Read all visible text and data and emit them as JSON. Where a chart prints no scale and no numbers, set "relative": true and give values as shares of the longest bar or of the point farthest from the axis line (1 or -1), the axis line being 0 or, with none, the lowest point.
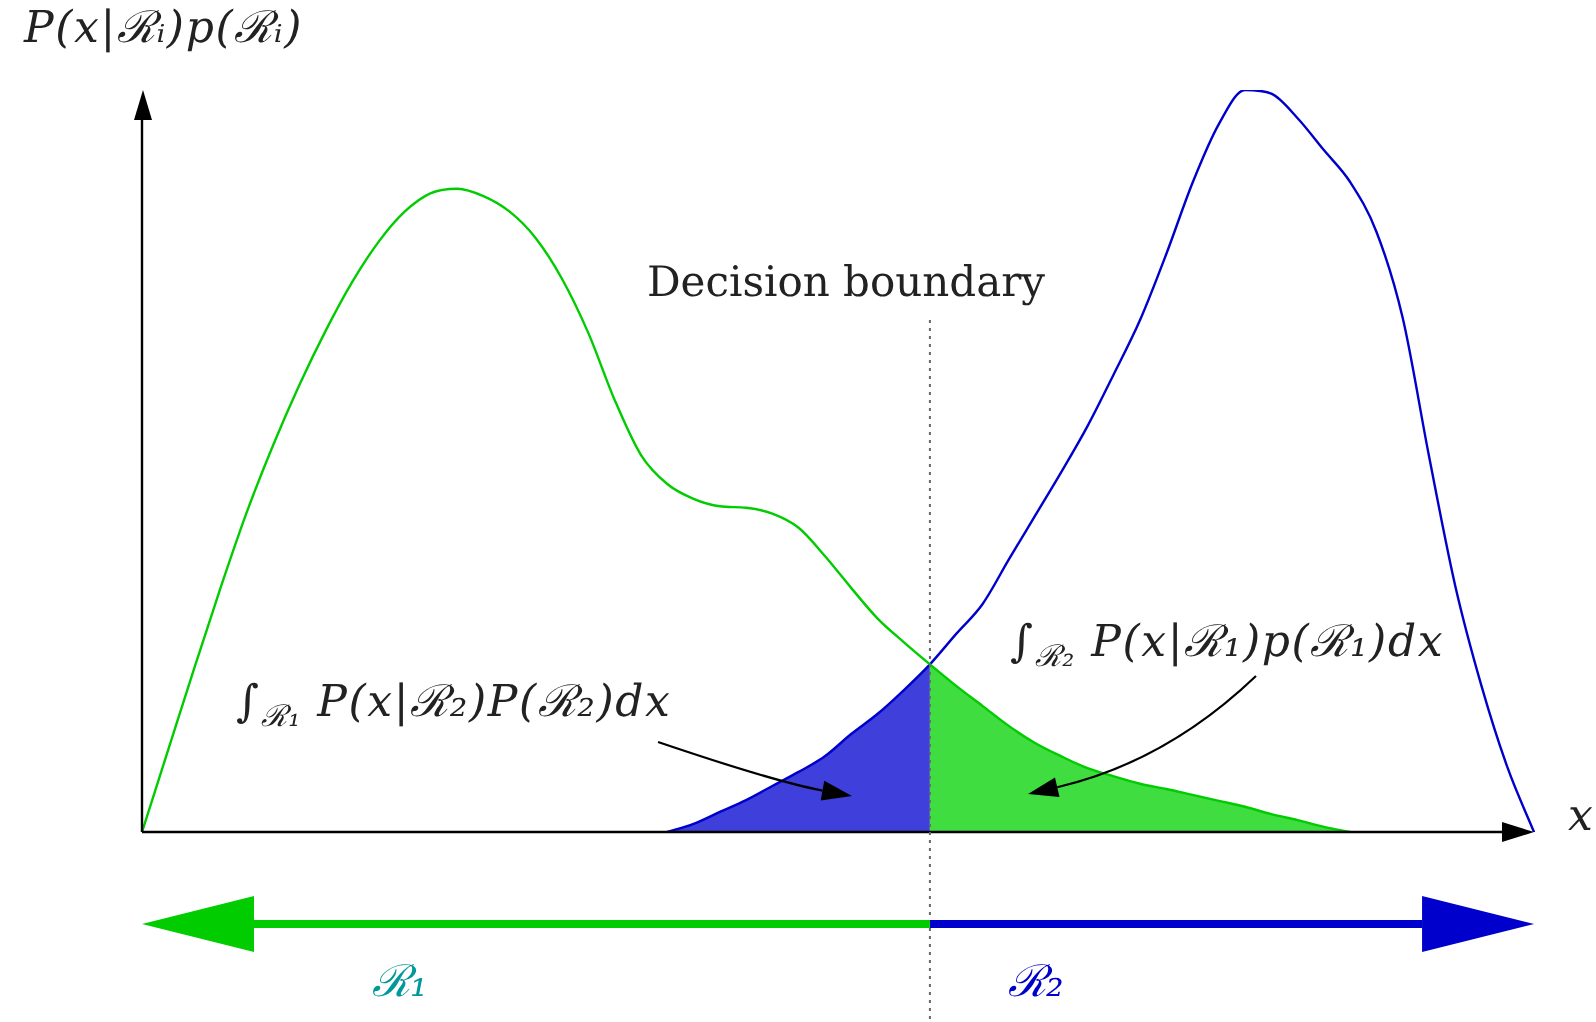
{
  "chart_data": {
    "type": "line",
    "xlabel": "x",
    "ylabel": "P(x|ℛᵢ)p(ℛᵢ)",
    "categories": [
      null,
      null,
      null,
      null,
      null,
      null,
      null,
      null,
      null,
      null,
      null,
      null,
      null,
      null,
      null,
      null,
      null,
      null,
      null,
      null,
      null,
      null,
      null,
      null,
      null,
      null,
      null,
      null,
      null,
      null,
      null,
      null,
      null,
      null,
      null,
      null,
      null,
      null,
      null,
      null,
      null,
      null,
      null,
      null,
      null,
      null,
      null,
      null,
      null,
      null,
      null,
      null,
      null,
      null
    ],
    "relative": true,
    "series": [
      {
        "color": "#00cc00",
        "values": [
          0,
          0.111,
          0.222,
          0.33,
          0.432,
          0.522,
          0.603,
          0.676,
          0.741,
          0.795,
          0.836,
          0.861,
          0.867,
          0.857,
          0.836,
          0.8,
          0.745,
          0.672,
          0.582,
          0.508,
          0.469,
          0.449,
          0.439,
          0.437,
          0.429,
          0.41,
          0.372,
          0.329,
          0.288,
          0.256,
          0.226,
          0.197,
          0.17,
          0.143,
          0.12,
          0.102,
          0.086,
          0.075,
          0.065,
          0.058,
          0.05,
          0.042,
          0.034,
          0.024,
          0.016,
          0.007,
          0,
          null,
          null,
          null,
          null,
          null,
          null,
          null
        ]
      },
      {
        "color": "#0000cc",
        "values": [
          null,
          null,
          null,
          null,
          null,
          null,
          null,
          null,
          null,
          null,
          null,
          null,
          null,
          null,
          null,
          null,
          null,
          null,
          null,
          null,
          0,
          0.011,
          0.027,
          0.043,
          0.062,
          0.081,
          0.102,
          0.132,
          0.159,
          0.191,
          0.226,
          0.267,
          0.307,
          0.367,
          0.426,
          0.485,
          0.547,
          0.617,
          0.69,
          0.779,
          0.875,
          0.954,
          1,
          0.995,
          0.962,
          0.919,
          0.876,
          0.809,
          0.693,
          0.507,
          0.332,
          0.197,
          0.086,
          0
        ]
      },
      {
        "type": "area",
        "color": "#3f3fdc",
        "values": [
          null,
          null,
          null,
          null,
          null,
          null,
          null,
          null,
          null,
          null,
          null,
          null,
          null,
          null,
          null,
          null,
          null,
          null,
          null,
          null,
          0,
          0.011,
          0.027,
          0.043,
          0.062,
          0.081,
          0.102,
          0.132,
          0.159,
          0.191,
          0.226,
          null,
          null,
          null,
          null,
          null,
          null,
          null,
          null,
          null,
          null,
          null,
          null,
          null,
          null,
          null,
          null,
          null,
          null,
          null,
          null,
          null,
          null,
          null
        ]
      },
      {
        "type": "area",
        "color": "#3fdd3f",
        "values": [
          null,
          null,
          null,
          null,
          null,
          null,
          null,
          null,
          null,
          null,
          null,
          null,
          null,
          null,
          null,
          null,
          null,
          null,
          null,
          null,
          null,
          null,
          null,
          null,
          null,
          null,
          null,
          null,
          null,
          null,
          0.226,
          0.197,
          0.17,
          0.143,
          0.12,
          0.102,
          0.086,
          0.075,
          0.065,
          0.058,
          0.05,
          0.042,
          0.034,
          0.024,
          0.016,
          0.007,
          0,
          null,
          null,
          null,
          null,
          null,
          null,
          null
        ]
      }
    ],
    "annotations": [
      "Decision boundary",
      "∫$_{ℛ₁}$ P(x|ℛ₂)P(ℛ₂)dx",
      "∫$_{ℛ₂}$ P(x|ℛ₁)p(ℛ₁)dx",
      "ℛ₁",
      "ℛ₂"
    ],
    "grid": false,
    "legend": false,
    "marker": "none",
    "line_style": "solid",
    "tick_labels": false
  }
}
